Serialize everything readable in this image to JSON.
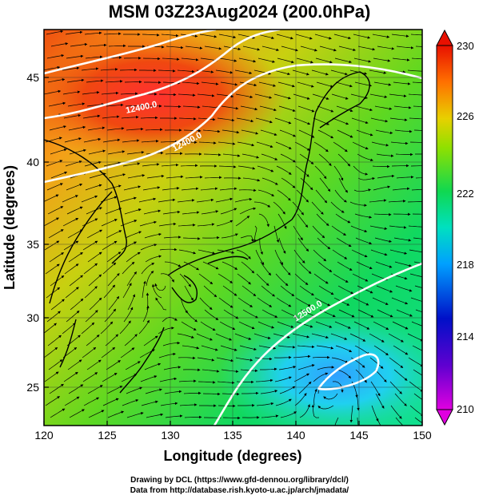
{
  "title": "MSM 03Z23Aug2024 (200.0hPa)",
  "x_axis_label": "Longitude (degrees)",
  "y_axis_label": "Latitude  (degrees)",
  "x_ticks": [
    "120",
    "125",
    "130",
    "135",
    "140",
    "145",
    "150"
  ],
  "y_ticks": [
    "45",
    "40",
    "35",
    "30",
    "25"
  ],
  "colorbar_ticks": [
    "230",
    "226",
    "222",
    "218",
    "214",
    "210"
  ],
  "contour_labels": [
    "12400.0",
    "12400.0",
    "12500.0"
  ],
  "credits": {
    "line1": "Drawing by DCL (https://www.gfd-dennou.org/library/dcl/)",
    "line2": "Data from http://database.rish.kyoto-u.ac.jp/arch/jmadata/"
  },
  "map": {
    "lon_range": [
      120,
      150
    ],
    "lat_range": [
      22.7,
      47.9
    ],
    "variable_range": [
      210,
      230
    ],
    "colormap": [
      "#e600e6",
      "#0000c8",
      "#00c8ff",
      "#00e060",
      "#90e000",
      "#e8c800",
      "#ff6000",
      "#e80000"
    ]
  }
}
